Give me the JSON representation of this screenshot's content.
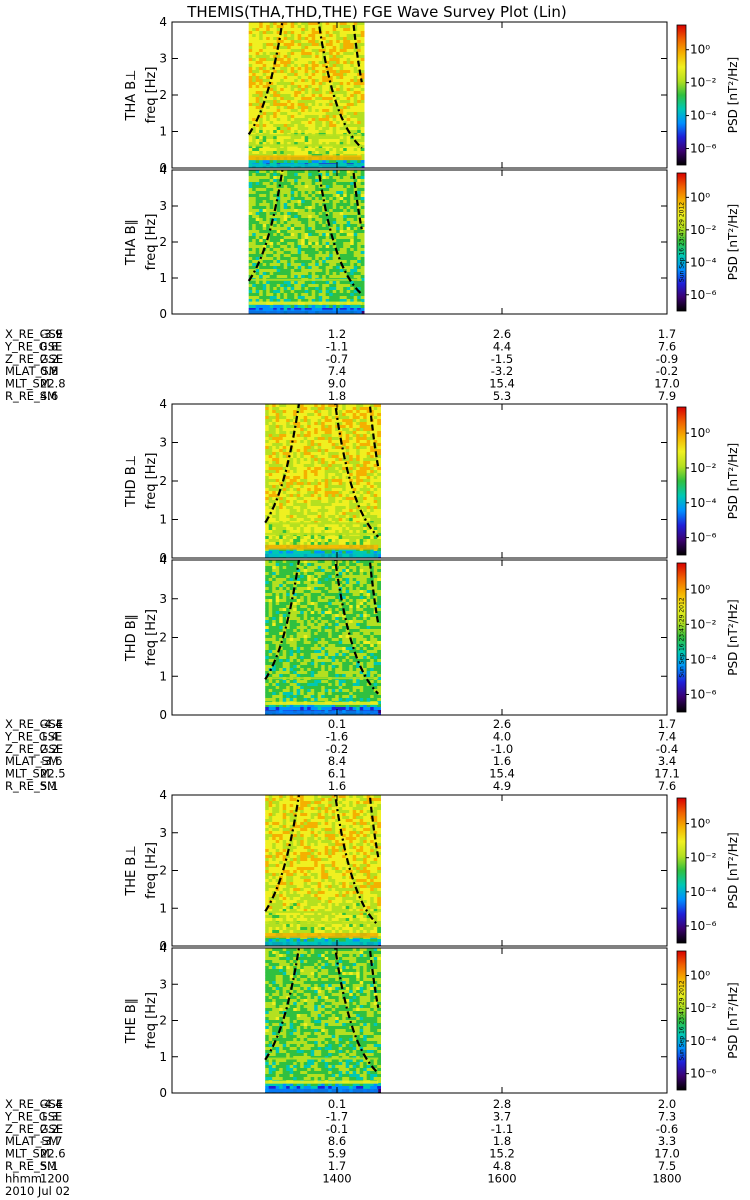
{
  "title": "THEMIS(THA,THD,THE) FGE Wave Survey Plot (Lin)",
  "colors": {
    "axis": "#000000",
    "background": "#ffffff",
    "colorscale": [
      "#000000",
      "#3a0070",
      "#1f1fd8",
      "#0090ff",
      "#00c8b4",
      "#30c040",
      "#b4e020",
      "#f0f020",
      "#f5b000",
      "#f06000",
      "#d80000"
    ]
  },
  "colorbar": {
    "label": "PSD [nT²/Hz]",
    "ticks": [
      {
        "value": -6,
        "label": "10⁻⁶"
      },
      {
        "value": -4,
        "label": "10⁻⁴"
      },
      {
        "value": -2,
        "label": "10⁻²"
      },
      {
        "value": 0,
        "label": "10⁰"
      }
    ],
    "range": [
      -7,
      1.5
    ]
  },
  "stamp": "Sun Sep 16 23:47:29 2012",
  "chart_data": {
    "type": "heatmap",
    "x_range": [
      1200,
      1800
    ],
    "x_ticks": [
      1200,
      1400,
      1600,
      1800
    ],
    "y_range": [
      0,
      4
    ],
    "y_ticks": [
      0,
      1,
      2,
      3,
      4
    ],
    "ylabel_common": "freq [Hz]",
    "date_label": "2010 Jul 02",
    "x_label_name": "hhmm",
    "x_tick_labels": [
      "1200",
      "1400",
      "1600",
      "1800"
    ],
    "panels": [
      {
        "name": "THA B⊥",
        "probe": "tha",
        "component": "perp",
        "data_start": 1293,
        "data_end": 1430,
        "curve_style": "dashdot-dashed"
      },
      {
        "name": "THA B∥",
        "probe": "tha",
        "component": "para",
        "data_start": 1293,
        "data_end": 1430,
        "curve_style": "dashdot-dashed"
      },
      {
        "name": "THD B⊥",
        "probe": "thd",
        "component": "perp",
        "data_start": 1313,
        "data_end": 1450,
        "curve_style": "dashdot-dashed"
      },
      {
        "name": "THD B∥",
        "probe": "thd",
        "component": "para",
        "data_start": 1313,
        "data_end": 1450,
        "curve_style": "dashdot-dashed"
      },
      {
        "name": "THE B⊥",
        "probe": "the",
        "component": "perp",
        "data_start": 1313,
        "data_end": 1450,
        "curve_style": "dashdot-dashed"
      },
      {
        "name": "THE B∥",
        "probe": "the",
        "component": "para",
        "data_start": 1313,
        "data_end": 1450,
        "curve_style": "dashdot-dashed"
      }
    ],
    "ephemeris": [
      {
        "probe": "tha",
        "rows": [
          {
            "label": "X_RE_GSE",
            "values": [
              "-3.9",
              "1.2",
              "2.6",
              "1.7"
            ]
          },
          {
            "label": "Y_RE_GSE",
            "values": [
              "0.8",
              "-1.1",
              "4.4",
              "7.6"
            ]
          },
          {
            "label": "Z_RE_GSE",
            "values": [
              "2.2",
              "-0.7",
              "-1.5",
              "-0.9"
            ]
          },
          {
            "label": "MLAT_SM",
            "values": [
              "0.8",
              "7.4",
              "-3.2",
              "-0.2"
            ]
          },
          {
            "label": "MLT_SM",
            "values": [
              "22.8",
              "9.0",
              "15.4",
              "17.0"
            ]
          },
          {
            "label": "R_RE_SM",
            "values": [
              "4.6",
              "1.8",
              "5.3",
              "7.9"
            ]
          }
        ]
      },
      {
        "probe": "thd",
        "rows": [
          {
            "label": "X_RE_GSE",
            "values": [
              "-4.4",
              "0.1",
              "2.6",
              "1.7"
            ]
          },
          {
            "label": "Y_RE_GSE",
            "values": [
              "1.4",
              "-1.6",
              "4.0",
              "7.4"
            ]
          },
          {
            "label": "Z_RE_GSE",
            "values": [
              "2.2",
              "-0.2",
              "-1.0",
              "-0.4"
            ]
          },
          {
            "label": "MLAT_SM",
            "values": [
              "-3.6",
              "8.4",
              "1.6",
              "3.4"
            ]
          },
          {
            "label": "MLT_SM",
            "values": [
              "22.5",
              "6.1",
              "15.4",
              "17.1"
            ]
          },
          {
            "label": "R_RE_SM",
            "values": [
              "5.1",
              "1.6",
              "4.9",
              "7.6"
            ]
          }
        ]
      },
      {
        "probe": "the",
        "rows": [
          {
            "label": "X_RE_GSE",
            "values": [
              "-4.4",
              "0.1",
              "2.8",
              "2.0"
            ]
          },
          {
            "label": "Y_RE_GSE",
            "values": [
              "1.3",
              "-1.7",
              "3.7",
              "7.3"
            ]
          },
          {
            "label": "Z_RE_GSE",
            "values": [
              "2.2",
              "-0.1",
              "-1.1",
              "-0.6"
            ]
          },
          {
            "label": "MLAT_SM",
            "values": [
              "-3.7",
              "8.6",
              "1.8",
              "3.3"
            ]
          },
          {
            "label": "MLT_SM",
            "values": [
              "22.6",
              "5.9",
              "15.2",
              "17.0"
            ]
          },
          {
            "label": "R_RE_SM",
            "values": [
              "5.1",
              "1.7",
              "4.8",
              "7.5"
            ]
          }
        ]
      }
    ]
  }
}
